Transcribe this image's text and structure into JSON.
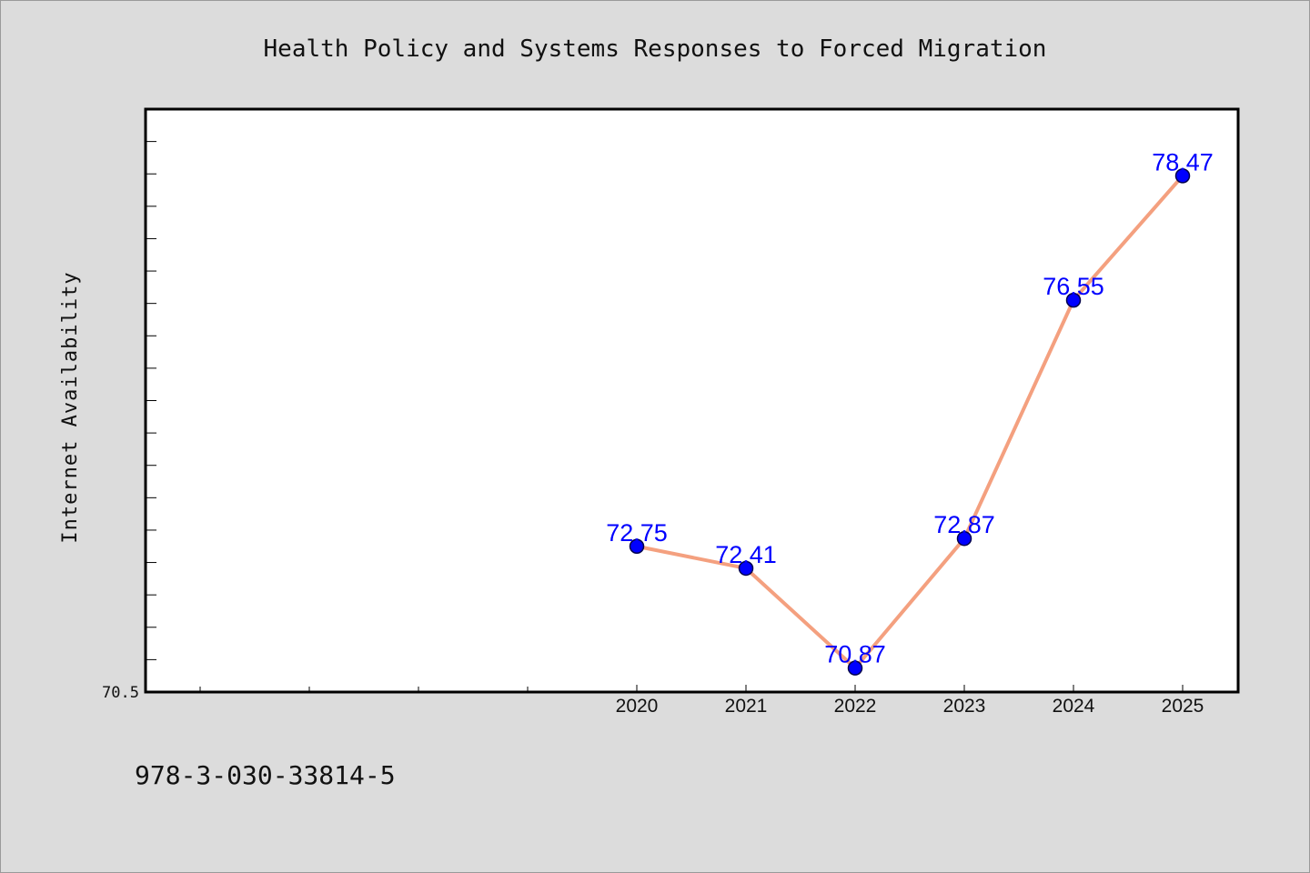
{
  "chart_data": {
    "type": "line",
    "title": "Health Policy and Systems Responses to Forced Migration",
    "xlabel": "",
    "ylabel": "Internet Availability",
    "categories": [
      "2020",
      "2021",
      "2022",
      "2023",
      "2024",
      "2025"
    ],
    "series": [
      {
        "name": "",
        "values": [
          72.75,
          72.41,
          70.87,
          72.87,
          76.55,
          78.47
        ],
        "data_labels": [
          "72.75",
          "72.41",
          "70.87",
          "72.87",
          "76.55",
          "78.47"
        ]
      }
    ],
    "ylim": [
      70.5,
      79.5
    ],
    "y_tick_labels": [
      "70.5"
    ],
    "grid": false,
    "legend": "none",
    "colors": {
      "line": "#f4a07f",
      "marker": "#0000ff",
      "marker_edge": "#00004d",
      "data_label": "#0000ff",
      "plot_background": "#ffffff",
      "figure_background": "#dcdcdc"
    }
  },
  "footer": {
    "isbn": "978-3-030-33814-5"
  }
}
